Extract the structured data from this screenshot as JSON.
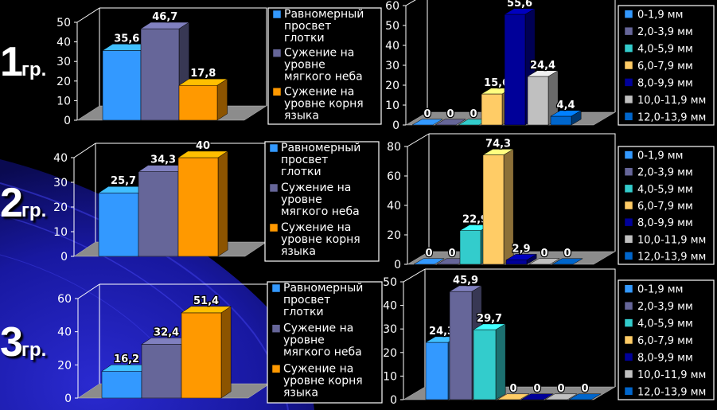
{
  "groups": [
    {
      "number": "1",
      "suffix": "гр."
    },
    {
      "number": "2",
      "suffix": "гр."
    },
    {
      "number": "3",
      "suffix": "гр."
    }
  ],
  "legends": {
    "shape": [
      "Равномерный просвет глотки",
      "Сужение на уровне мягкого неба",
      "Сужение на уровне корня языка"
    ],
    "size": [
      "0-1,9 мм",
      "2,0-3,9 мм",
      "4,0-5,9 мм",
      "6,0-7,9 мм",
      "8,0-9,9 мм",
      "10,0-11,9 мм",
      "12,0-13,9 мм"
    ]
  },
  "colors": {
    "shape": [
      "#3399ff",
      "#666699",
      "#ff9900"
    ],
    "size": [
      "#3399ff",
      "#666699",
      "#33cccc",
      "#ffcc66",
      "#000099",
      "#c0c0c0",
      "#0066cc"
    ],
    "background": "#000000",
    "swirl": "#1a1aa8"
  },
  "chart_data": [
    {
      "type": "bar",
      "group": "1",
      "categories": [
        "Равномерный просвет глотки",
        "Сужение на уровне мягкого неба",
        "Сужение на уровне корня языка"
      ],
      "values": [
        35.6,
        46.7,
        17.8
      ],
      "value_labels": [
        "35,6",
        "46,7",
        "17,8"
      ],
      "ylim": [
        0,
        50
      ],
      "yticks": [
        "0",
        "10",
        "20",
        "30",
        "40",
        "50"
      ],
      "legend": "right",
      "grid": false
    },
    {
      "type": "bar",
      "group": "1",
      "categories": [
        "0-1,9 мм",
        "2,0-3,9 мм",
        "4,0-5,9 мм",
        "6,0-7,9 мм",
        "8,0-9,9 мм",
        "10,0-11,9 мм",
        "12,0-13,9 мм"
      ],
      "values": [
        0,
        0,
        0,
        15.6,
        55.6,
        24.4,
        4.4
      ],
      "value_labels": [
        "0",
        "0",
        "0",
        "15,6",
        "55,6",
        "24,4",
        "4,4"
      ],
      "ylim": [
        0,
        60
      ],
      "yticks": [
        "0",
        "10",
        "20",
        "30",
        "40",
        "50",
        "60"
      ],
      "legend": "right",
      "grid": false
    },
    {
      "type": "bar",
      "group": "2",
      "categories": [
        "Равномерный просвет глотки",
        "Сужение на уровне мягкого неба",
        "Сужение на уровне корня языка"
      ],
      "values": [
        25.7,
        34.3,
        40
      ],
      "value_labels": [
        "25,7",
        "34,3",
        "40"
      ],
      "ylim": [
        0,
        40
      ],
      "yticks": [
        "0",
        "10",
        "20",
        "30",
        "40"
      ],
      "legend": "right",
      "grid": false
    },
    {
      "type": "bar",
      "group": "2",
      "categories": [
        "0-1,9 мм",
        "2,0-3,9 мм",
        "4,0-5,9 мм",
        "6,0-7,9 мм",
        "8,0-9,9 мм",
        "10,0-11,9 мм",
        "12,0-13,9 мм"
      ],
      "values": [
        0,
        0,
        22.9,
        74.3,
        2.9,
        0,
        0
      ],
      "value_labels": [
        "0",
        "0",
        "22,9",
        "74,3",
        "2,9",
        "0",
        "0"
      ],
      "ylim": [
        0,
        80
      ],
      "yticks": [
        "0",
        "20",
        "40",
        "60",
        "80"
      ],
      "legend": "right",
      "grid": false
    },
    {
      "type": "bar",
      "group": "3",
      "categories": [
        "Равномерный просвет глотки",
        "Сужение на уровне мягкого неба",
        "Сужение на уровне корня языка"
      ],
      "values": [
        16.2,
        32.4,
        51.4
      ],
      "value_labels": [
        "16,2",
        "32,4",
        "51,4"
      ],
      "ylim": [
        0,
        60
      ],
      "yticks": [
        "0",
        "20",
        "40",
        "60"
      ],
      "legend": "right",
      "grid": false
    },
    {
      "type": "bar",
      "group": "3",
      "categories": [
        "0-1,9 мм",
        "2,0-3,9 мм",
        "4,0-5,9 мм",
        "6,0-7,9 мм",
        "8,0-9,9 мм",
        "10,0-11,9 мм",
        "12,0-13,9 мм"
      ],
      "values": [
        24.3,
        45.9,
        29.7,
        0,
        0,
        0,
        0
      ],
      "value_labels": [
        "24,3",
        "45,9",
        "29,7",
        "0",
        "0",
        "0",
        "0"
      ],
      "ylim": [
        0,
        50
      ],
      "yticks": [
        "0",
        "10",
        "20",
        "30",
        "40",
        "50"
      ],
      "legend": "right",
      "grid": false
    }
  ]
}
